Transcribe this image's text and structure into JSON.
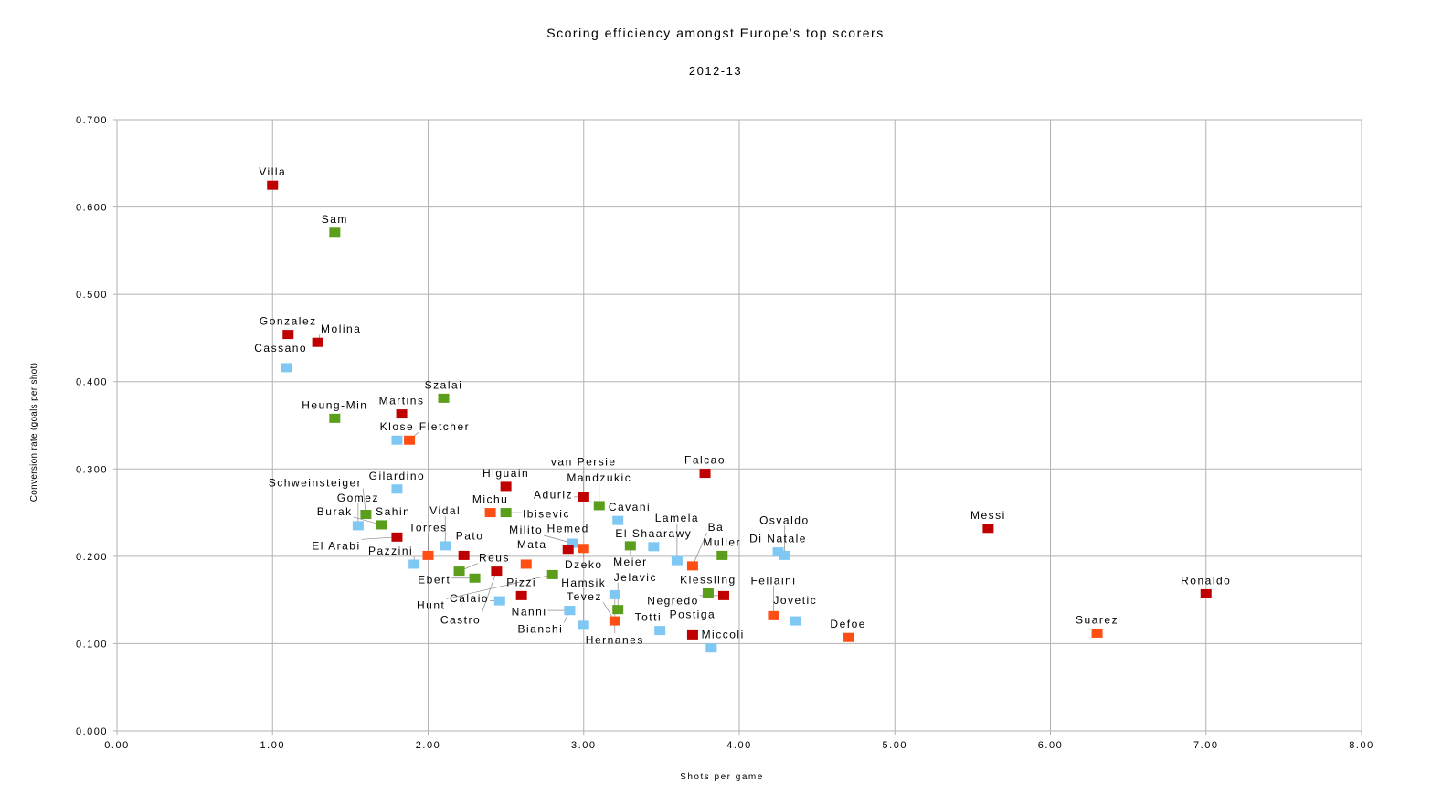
{
  "chart_data": {
    "type": "scatter",
    "title": "Scoring efficiency amongst Europe's top scorers",
    "subtitle": "2012-13",
    "xlabel": "Shots per game",
    "ylabel": "Conversion rate (goals per shot)",
    "xlim": [
      0,
      8
    ],
    "ylim": [
      0,
      0.7
    ],
    "xticks": [
      "0.00",
      "1.00",
      "2.00",
      "3.00",
      "4.00",
      "5.00",
      "6.00",
      "7.00",
      "8.00"
    ],
    "yticks": [
      "0.000",
      "0.100",
      "0.200",
      "0.300",
      "0.400",
      "0.500",
      "0.600",
      "0.700"
    ],
    "grid": true,
    "legend": "none",
    "colors": {
      "red": "#c00000",
      "green": "#5b9e1c",
      "blue": "#80c8f4",
      "orange": "#ff4e14"
    },
    "points": [
      {
        "name": "Villa",
        "x": 1.0,
        "y": 0.625,
        "color": "red"
      },
      {
        "name": "Sam",
        "x": 1.4,
        "y": 0.571,
        "color": "green"
      },
      {
        "name": "Gonzalez",
        "x": 1.1,
        "y": 0.454,
        "color": "red"
      },
      {
        "name": "Molina",
        "x": 1.29,
        "y": 0.445,
        "color": "red"
      },
      {
        "name": "Cassano",
        "x": 1.09,
        "y": 0.416,
        "color": "blue"
      },
      {
        "name": "Szalai",
        "x": 2.1,
        "y": 0.381,
        "color": "green"
      },
      {
        "name": "Heung-Min",
        "x": 1.4,
        "y": 0.358,
        "color": "green"
      },
      {
        "name": "Martins",
        "x": 1.83,
        "y": 0.363,
        "color": "red"
      },
      {
        "name": "Klose",
        "x": 1.8,
        "y": 0.333,
        "color": "blue"
      },
      {
        "name": "Fletcher",
        "x": 1.88,
        "y": 0.333,
        "color": "orange"
      },
      {
        "name": "Gilardino",
        "x": 1.8,
        "y": 0.277,
        "color": "blue"
      },
      {
        "name": "Higuain",
        "x": 2.5,
        "y": 0.28,
        "color": "red"
      },
      {
        "name": "Michu",
        "x": 2.4,
        "y": 0.25,
        "color": "orange"
      },
      {
        "name": "Ibisevic",
        "x": 2.5,
        "y": 0.25,
        "color": "green"
      },
      {
        "name": "Schweinsteiger",
        "x": 1.6,
        "y": 0.248,
        "color": "green"
      },
      {
        "name": "Gomez",
        "x": 1.55,
        "y": 0.235,
        "color": "blue"
      },
      {
        "name": "Sahin",
        "x": 1.7,
        "y": 0.236,
        "color": "green"
      },
      {
        "name": "El Arabi",
        "x": 1.8,
        "y": 0.222,
        "color": "red"
      },
      {
        "name": "Burak",
        "x": 1.7,
        "y": 0.236,
        "color": "green"
      },
      {
        "name": "Pazzini",
        "x": 1.91,
        "y": 0.191,
        "color": "blue"
      },
      {
        "name": "Torres",
        "x": 2.0,
        "y": 0.201,
        "color": "orange"
      },
      {
        "name": "Vidal",
        "x": 2.11,
        "y": 0.212,
        "color": "blue"
      },
      {
        "name": "Pato",
        "x": 2.23,
        "y": 0.201,
        "color": "red"
      },
      {
        "name": "Reus",
        "x": 2.2,
        "y": 0.183,
        "color": "green"
      },
      {
        "name": "Ebert",
        "x": 2.3,
        "y": 0.175,
        "color": "green"
      },
      {
        "name": "Castro",
        "x": 2.44,
        "y": 0.183,
        "color": "red"
      },
      {
        "name": "Calaio",
        "x": 2.46,
        "y": 0.149,
        "color": "blue"
      },
      {
        "name": "Pizzi",
        "x": 2.6,
        "y": 0.155,
        "color": "red"
      },
      {
        "name": "Mata",
        "x": 2.63,
        "y": 0.191,
        "color": "orange"
      },
      {
        "name": "Hunt",
        "x": 2.8,
        "y": 0.179,
        "color": "green"
      },
      {
        "name": "Milito",
        "x": 2.93,
        "y": 0.215,
        "color": "blue"
      },
      {
        "name": "Hemed",
        "x": 2.9,
        "y": 0.208,
        "color": "red"
      },
      {
        "name": "Dzeko",
        "x": 3.0,
        "y": 0.209,
        "color": "orange"
      },
      {
        "name": "van Persie",
        "x": 3.0,
        "y": 0.268,
        "color": "red"
      },
      {
        "name": "Aduriz",
        "x": 3.0,
        "y": 0.268,
        "color": "red"
      },
      {
        "name": "Mandzukic",
        "x": 3.1,
        "y": 0.258,
        "color": "green"
      },
      {
        "name": "Cavani",
        "x": 3.22,
        "y": 0.241,
        "color": "blue"
      },
      {
        "name": "Meier",
        "x": 3.3,
        "y": 0.212,
        "color": "green"
      },
      {
        "name": "El Shaarawy",
        "x": 3.45,
        "y": 0.211,
        "color": "blue"
      },
      {
        "name": "Lamela",
        "x": 3.6,
        "y": 0.195,
        "color": "blue"
      },
      {
        "name": "Ba",
        "x": 3.7,
        "y": 0.189,
        "color": "orange"
      },
      {
        "name": "Muller",
        "x": 3.89,
        "y": 0.201,
        "color": "green"
      },
      {
        "name": "Falcao",
        "x": 3.78,
        "y": 0.295,
        "color": "red"
      },
      {
        "name": "Di Natale",
        "x": 4.25,
        "y": 0.205,
        "color": "blue"
      },
      {
        "name": "Osvaldo",
        "x": 4.29,
        "y": 0.201,
        "color": "blue"
      },
      {
        "name": "Messi",
        "x": 5.6,
        "y": 0.232,
        "color": "red"
      },
      {
        "name": "Ronaldo",
        "x": 7.0,
        "y": 0.157,
        "color": "red"
      },
      {
        "name": "Suarez",
        "x": 6.3,
        "y": 0.112,
        "color": "orange"
      },
      {
        "name": "Defoe",
        "x": 4.7,
        "y": 0.107,
        "color": "orange"
      },
      {
        "name": "Fellaini",
        "x": 4.22,
        "y": 0.132,
        "color": "orange"
      },
      {
        "name": "Jovetic",
        "x": 4.36,
        "y": 0.126,
        "color": "blue"
      },
      {
        "name": "Kiessling",
        "x": 3.8,
        "y": 0.158,
        "color": "green"
      },
      {
        "name": "Negredo",
        "x": 3.9,
        "y": 0.155,
        "color": "red"
      },
      {
        "name": "Hernanes",
        "x": 3.2,
        "y": 0.156,
        "color": "blue"
      },
      {
        "name": "Jelavic",
        "x": 3.22,
        "y": 0.139,
        "color": "green"
      },
      {
        "name": "Tevez",
        "x": 3.2,
        "y": 0.126,
        "color": "orange"
      },
      {
        "name": "Hamsik",
        "x": 3.0,
        "y": 0.121,
        "color": "blue"
      },
      {
        "name": "Nanni",
        "x": 2.91,
        "y": 0.138,
        "color": "blue"
      },
      {
        "name": "Bianchi",
        "x": 2.91,
        "y": 0.138,
        "color": "blue"
      },
      {
        "name": "Totti",
        "x": 3.49,
        "y": 0.115,
        "color": "blue"
      },
      {
        "name": "Postiga",
        "x": 3.7,
        "y": 0.11,
        "color": "red"
      },
      {
        "name": "Miccoli",
        "x": 3.82,
        "y": 0.095,
        "color": "blue"
      }
    ]
  }
}
